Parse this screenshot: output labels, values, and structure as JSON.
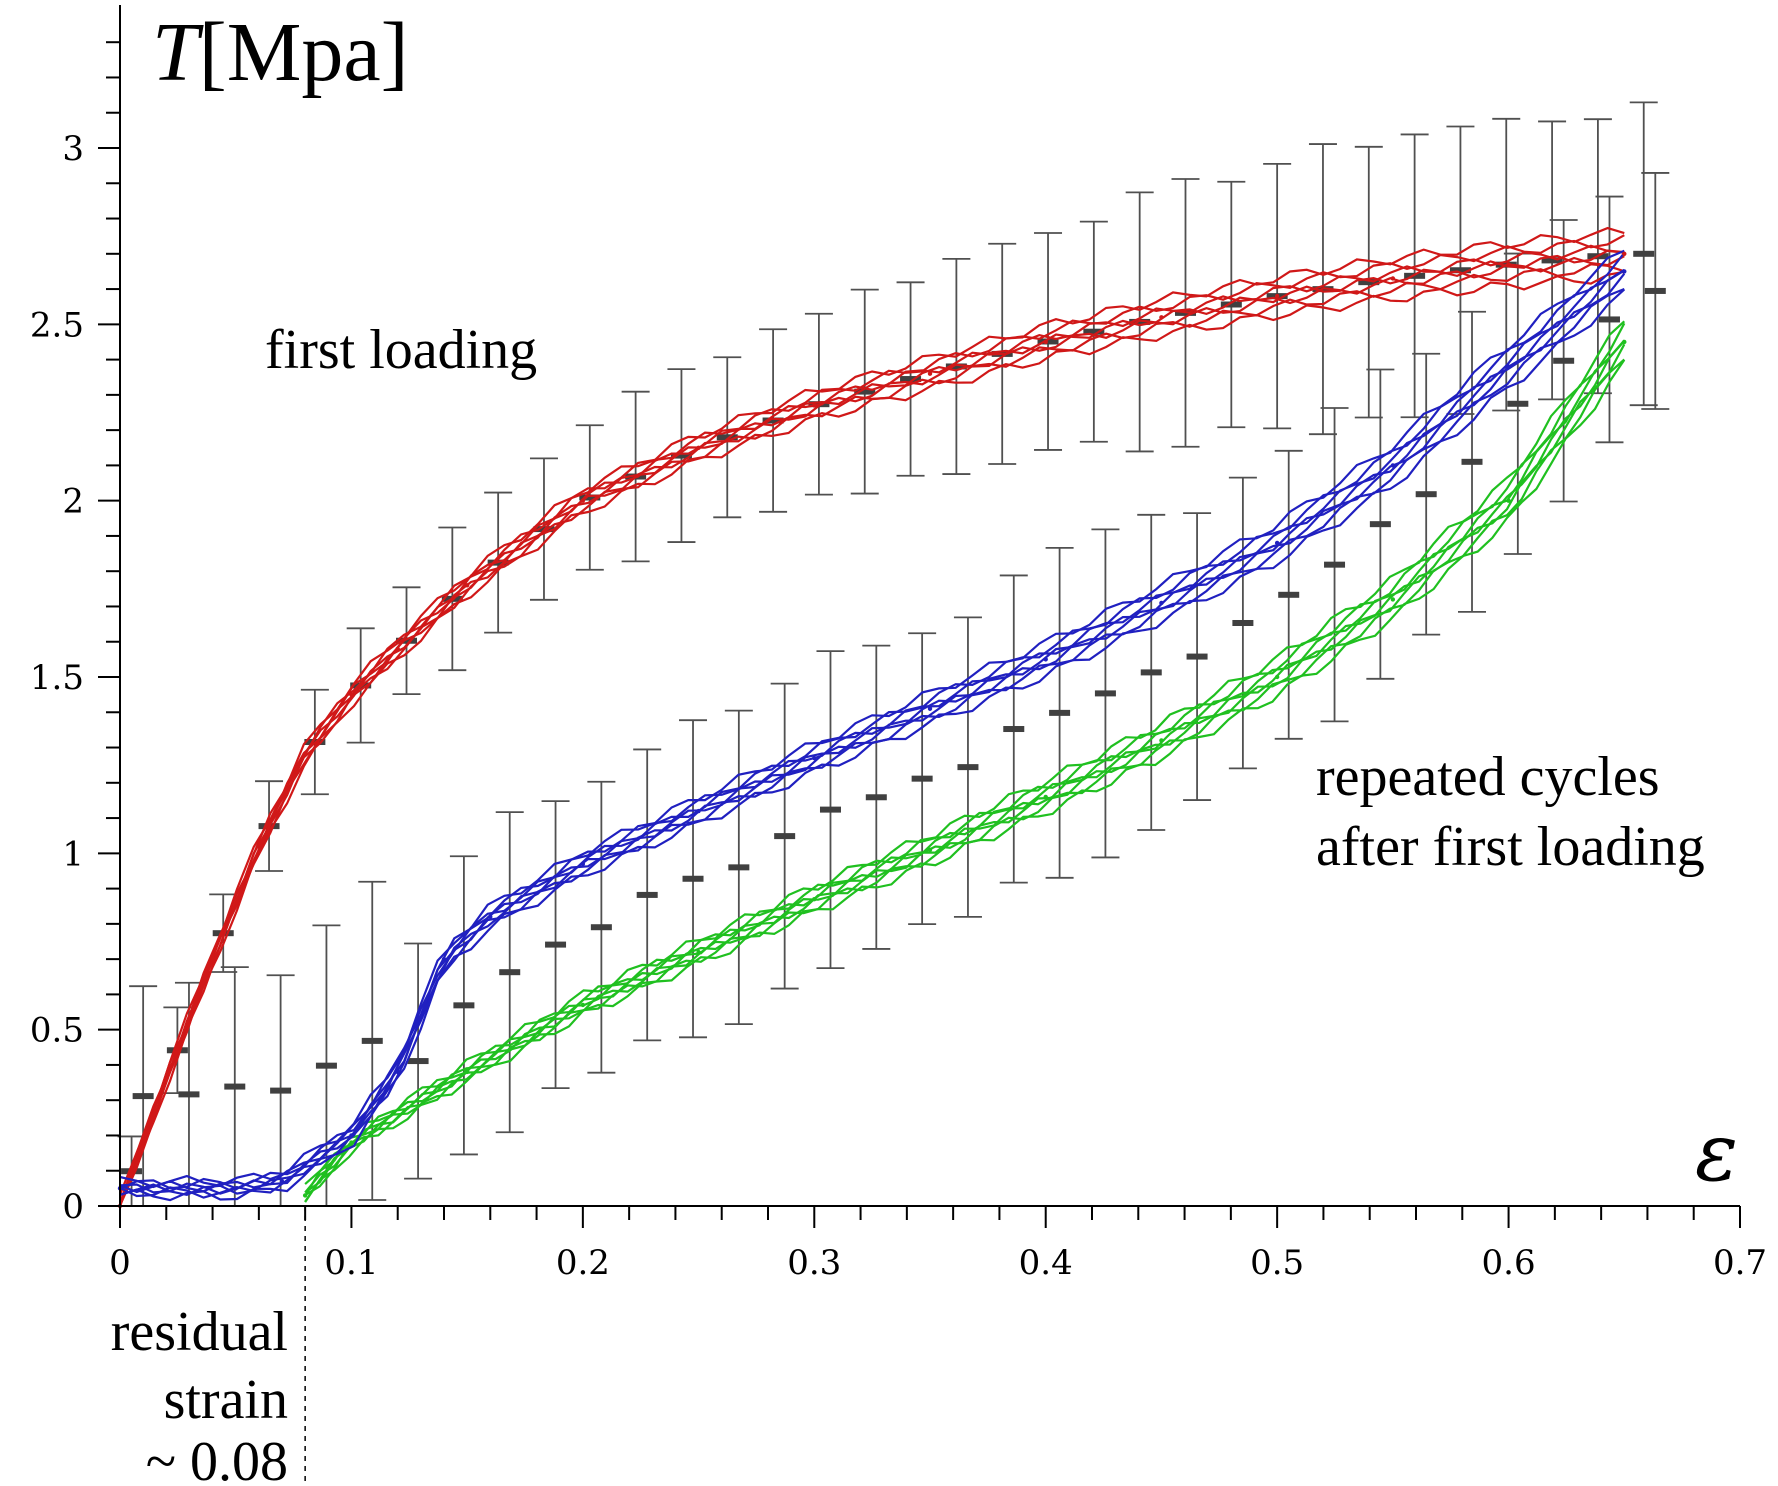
{
  "chart_data": {
    "type": "line",
    "title": "",
    "xlabel": "ε",
    "ylabel_symbol": "T",
    "ylabel_unit": "[Mpa]",
    "xlim": [
      0,
      0.7
    ],
    "ylim": [
      0,
      3.3
    ],
    "xticks": [
      "0",
      "0.1",
      "0.2",
      "0.3",
      "0.4",
      "0.5",
      "0.6",
      "0.7"
    ],
    "yticks": [
      "0",
      "0.5",
      "1",
      "1.5",
      "2",
      "2.5",
      "3"
    ],
    "colors": {
      "first_loading": "#d01818",
      "cycles_a": "#2020c0",
      "cycles_b": "#20c020",
      "error_bars": "#505050"
    },
    "annotations": {
      "first_loading": "first loading",
      "repeated_1": "repeated cycles",
      "repeated_2": "after first loading",
      "residual_1": "residual",
      "residual_2": "strain",
      "residual_3": "~ 0.08"
    },
    "residual_strain": 0.08,
    "series": [
      {
        "name": "first loading",
        "color": "#d01818",
        "x": [
          0,
          0.02,
          0.04,
          0.06,
          0.08,
          0.1,
          0.12,
          0.15,
          0.2,
          0.25,
          0.3,
          0.35,
          0.4,
          0.45,
          0.5,
          0.55,
          0.6,
          0.65
        ],
        "y": [
          0,
          0.36,
          0.7,
          1.02,
          1.28,
          1.45,
          1.58,
          1.76,
          2.0,
          2.15,
          2.27,
          2.36,
          2.45,
          2.52,
          2.58,
          2.63,
          2.67,
          2.7
        ]
      },
      {
        "name": "repeated cycles (loading branch)",
        "color": "#2020c0",
        "x": [
          0,
          0.05,
          0.07,
          0.1,
          0.12,
          0.14,
          0.16,
          0.2,
          0.25,
          0.3,
          0.35,
          0.4,
          0.45,
          0.5,
          0.55,
          0.6,
          0.65
        ],
        "y": [
          0.05,
          0.05,
          0.07,
          0.2,
          0.38,
          0.7,
          0.82,
          0.97,
          1.12,
          1.27,
          1.41,
          1.55,
          1.71,
          1.88,
          2.1,
          2.38,
          2.65
        ]
      },
      {
        "name": "repeated cycles (unloading branch)",
        "color": "#20c020",
        "x": [
          0.08,
          0.1,
          0.15,
          0.2,
          0.25,
          0.3,
          0.35,
          0.4,
          0.45,
          0.5,
          0.55,
          0.6,
          0.65
        ],
        "y": [
          0.03,
          0.18,
          0.38,
          0.57,
          0.72,
          0.87,
          1.01,
          1.16,
          1.32,
          1.5,
          1.72,
          2.0,
          2.45
        ]
      }
    ]
  }
}
